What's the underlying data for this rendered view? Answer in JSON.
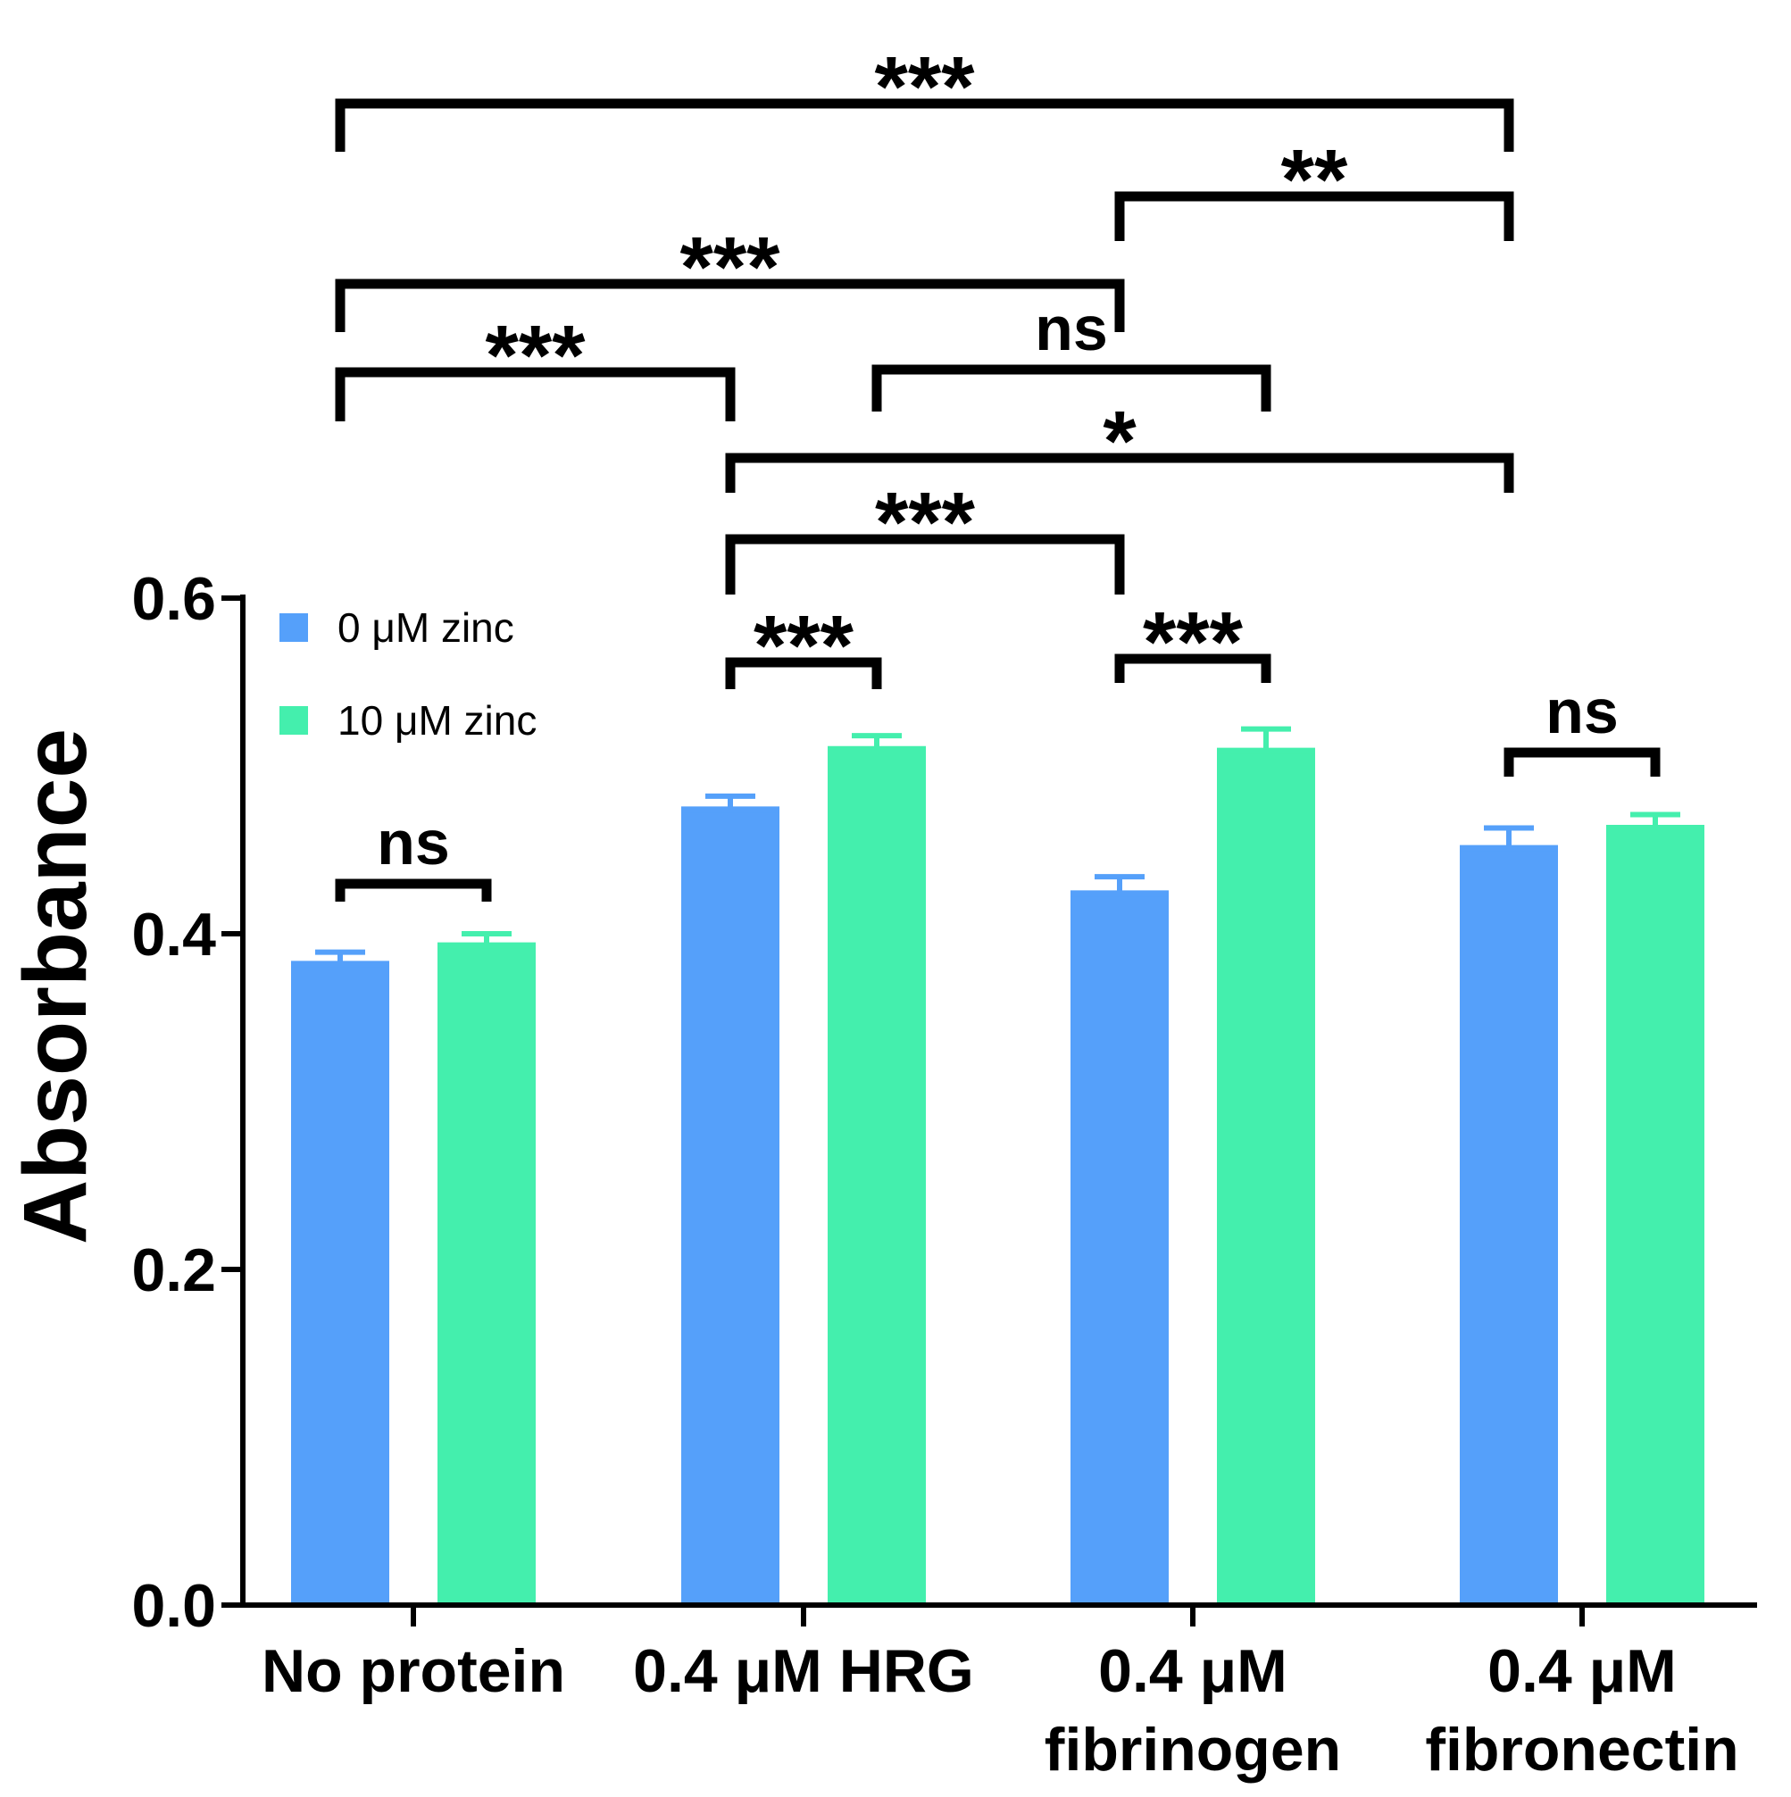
{
  "chart_data": {
    "type": "bar",
    "title": "",
    "xlabel": "",
    "ylabel": "Absorbance",
    "ylim": [
      0,
      0.6
    ],
    "yticks": [
      "0.0",
      "0.2",
      "0.4",
      "0.6"
    ],
    "categories": [
      [
        "No protein"
      ],
      [
        "0.4 μM HRG"
      ],
      [
        "0.4 μM",
        "fibrinogen"
      ],
      [
        "0.4 μM",
        "fibronectin"
      ]
    ],
    "series": [
      {
        "name": "0 μM zinc",
        "color": "#55a0fa",
        "values": [
          0.382,
          0.474,
          0.424,
          0.451
        ],
        "errors": [
          0.007,
          0.008,
          0.01,
          0.012
        ]
      },
      {
        "name": "10 μM zinc",
        "color": "#44efad",
        "values": [
          0.393,
          0.51,
          0.509,
          0.463
        ],
        "errors": [
          0.007,
          0.008,
          0.013,
          0.008
        ]
      }
    ],
    "legend": "top-left",
    "significance": [
      {
        "a": [
          0,
          0
        ],
        "b": [
          0,
          1
        ],
        "label": "ns"
      },
      {
        "a": [
          1,
          0
        ],
        "b": [
          1,
          1
        ],
        "label": "***"
      },
      {
        "a": [
          2,
          0
        ],
        "b": [
          2,
          1
        ],
        "label": "***"
      },
      {
        "a": [
          3,
          0
        ],
        "b": [
          3,
          1
        ],
        "label": "ns"
      },
      {
        "a": [
          1,
          0
        ],
        "b": [
          2,
          0
        ],
        "label": "***"
      },
      {
        "a": [
          1,
          0
        ],
        "b": [
          3,
          0
        ],
        "label": "*"
      },
      {
        "a": [
          0,
          0
        ],
        "b": [
          1,
          0
        ],
        "label": "***"
      },
      {
        "a": [
          1,
          1
        ],
        "b": [
          2,
          1
        ],
        "label": "ns"
      },
      {
        "a": [
          0,
          0
        ],
        "b": [
          2,
          0
        ],
        "label": "***"
      },
      {
        "a": [
          2,
          0
        ],
        "b": [
          3,
          0
        ],
        "label": "**"
      },
      {
        "a": [
          0,
          0
        ],
        "b": [
          3,
          0
        ],
        "label": "***"
      }
    ]
  }
}
